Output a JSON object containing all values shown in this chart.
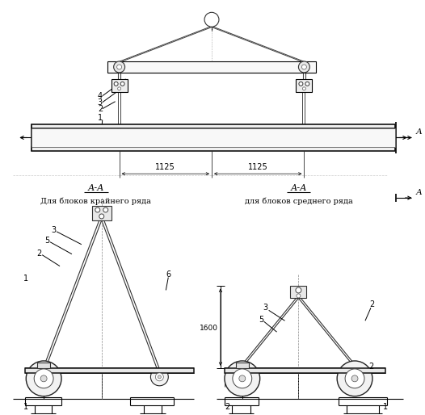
{
  "bg_color": "#ffffff",
  "line_color": "#000000",
  "fig_width": 5.26,
  "fig_height": 5.14,
  "dpi": 100,
  "caption_left": "Для блоков крайнего ряда",
  "caption_right": "для блоков среднего ряда",
  "dim_1125_left": "1125",
  "dim_1125_right": "1125",
  "dim_1600": "1600",
  "section_arrow_label": "А"
}
